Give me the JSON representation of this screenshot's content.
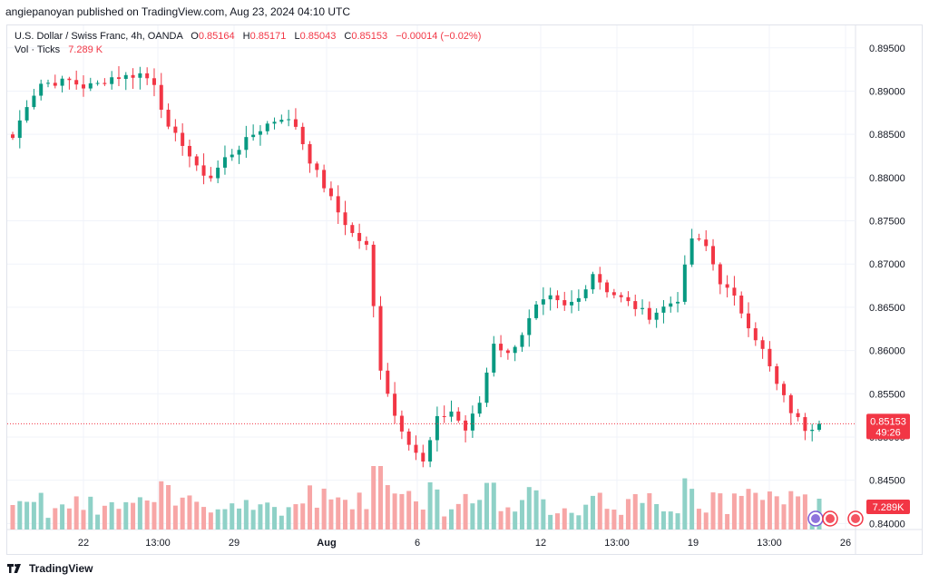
{
  "header": {
    "published_line": "angiepanoyan published on TradingView.com, Aug 23, 2024 04:10 UTC"
  },
  "legend": {
    "symbol": "U.S. Dollar / Swiss Franc, 4h, OANDA",
    "open_label": "O",
    "open": "0.85164",
    "high_label": "H",
    "high": "0.85171",
    "low_label": "L",
    "low": "0.85043",
    "close_label": "C",
    "close": "0.85153",
    "change": "−0.00014 (−0.02%)",
    "volume_label": "Vol · Ticks",
    "volume": "7.289 K"
  },
  "footer": {
    "brand": "TradingView"
  },
  "chart_data": {
    "type": "candlestick",
    "symbol": "USDCHF",
    "timeframe": "4h",
    "y_axis": {
      "ticks": [
        "0.89500",
        "0.89000",
        "0.88500",
        "0.88000",
        "0.87500",
        "0.87000",
        "0.86500",
        "0.86000",
        "0.85500",
        "0.85000",
        "0.84500",
        "0.84000"
      ],
      "ylim": [
        0.8393,
        0.8976
      ]
    },
    "x_axis": {
      "ticks": [
        "22",
        "13:00",
        "29",
        "Aug",
        "6",
        "12",
        "13:00",
        "19",
        "13:00",
        "26"
      ]
    },
    "last_price": {
      "value": "0.85153",
      "countdown": "49:26",
      "color": "#f23645"
    },
    "last_volume": {
      "value": "7.289K",
      "color": "#f23645"
    },
    "colors": {
      "up": "#089981",
      "down": "#f23645",
      "vol_up": "#8fd1c7",
      "vol_down": "#f7a6a6"
    },
    "anchors": [
      [
        0.8846,
        0.8885,
        0.8909,
        0.891,
        0.8912,
        0.8905,
        0.8908,
        0.8916,
        0.8917,
        0.892
      ],
      [
        0.892,
        0.891,
        0.8855,
        0.884,
        0.881,
        0.88,
        0.8822,
        0.8835,
        0.885,
        0.8862,
        0.887,
        0.886
      ],
      [
        0.886,
        0.882,
        0.879,
        0.876,
        0.8735,
        0.872,
        0.858,
        0.8525,
        0.8495,
        0.847
      ],
      [
        0.847,
        0.852,
        0.853,
        0.8508,
        0.854,
        0.861,
        0.8595,
        0.862,
        0.865,
        0.866,
        0.865,
        0.866,
        0.869,
        0.867,
        0.866,
        0.865,
        0.864,
        0.865,
        0.866
      ],
      [
        0.866,
        0.873,
        0.872,
        0.868,
        0.866,
        0.863,
        0.86,
        0.856,
        0.853,
        0.851,
        0.8515
      ]
    ]
  }
}
